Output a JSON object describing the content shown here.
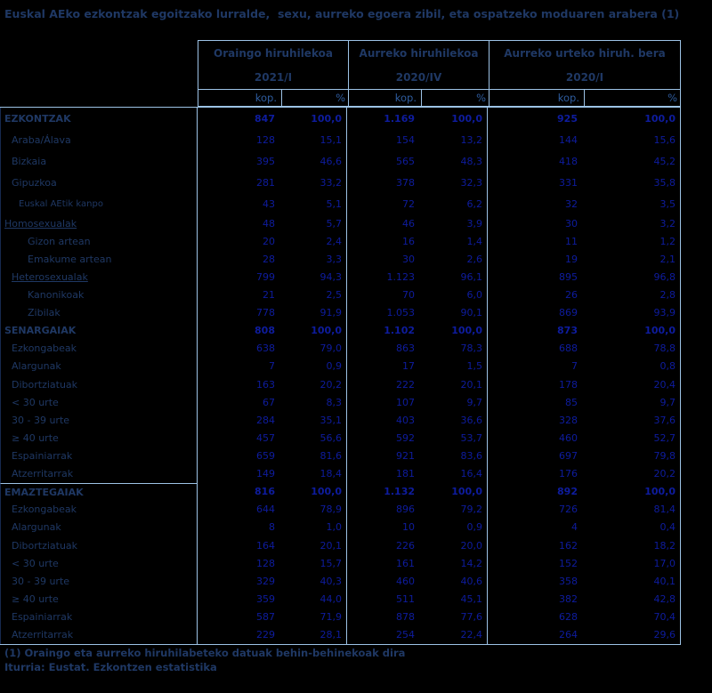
{
  "title": "Euskal AEko ezkontzak egoitzako lurralde,  sexu, aurreko egoera zibil, eta ospatzeko moduaren arabera (1)",
  "table": {
    "column_groups": [
      {
        "label": "Oraingo hiruhilekoa",
        "period": "2021/I"
      },
      {
        "label": "Aurreko hiruhilekoa",
        "period": "2020/IV"
      },
      {
        "label": "Aurreko urteko hiruh. bera",
        "period": "2020/I"
      }
    ],
    "subheaders": {
      "count": "kop.",
      "percent": "%"
    },
    "rows": [
      {
        "label": "EZKONTZAK",
        "bold": true,
        "indent": 0,
        "tall": true,
        "values": [
          "847",
          "100,0",
          "1.169",
          "100,0",
          "925",
          "100,0"
        ]
      },
      {
        "label": "Araba/Álava",
        "indent": 1,
        "tall": true,
        "values": [
          "128",
          "15,1",
          "154",
          "13,2",
          "144",
          "15,6"
        ]
      },
      {
        "label": "Bizkaia",
        "indent": 1,
        "tall": true,
        "values": [
          "395",
          "46,6",
          "565",
          "48,3",
          "418",
          "45,2"
        ]
      },
      {
        "label": "Gipuzkoa",
        "indent": 1,
        "tall": true,
        "values": [
          "281",
          "33,2",
          "378",
          "32,3",
          "331",
          "35,8"
        ]
      },
      {
        "label": "Euskal AEtik kanpo",
        "indent": 2,
        "small": true,
        "tall": true,
        "values": [
          "43",
          "5,1",
          "72",
          "6,2",
          "32",
          "3,5"
        ]
      },
      {
        "label": "Homosexualak",
        "indent": 0,
        "underline": true,
        "values": [
          "48",
          "5,7",
          "46",
          "3,9",
          "30",
          "3,2"
        ]
      },
      {
        "label": "Gizon artean",
        "indent": 3,
        "values": [
          "20",
          "2,4",
          "16",
          "1,4",
          "11",
          "1,2"
        ]
      },
      {
        "label": "Emakume artean",
        "indent": 3,
        "values": [
          "28",
          "3,3",
          "30",
          "2,6",
          "19",
          "2,1"
        ]
      },
      {
        "label": "Heterosexualak",
        "indent": 1,
        "underline": true,
        "values": [
          "799",
          "94,3",
          "1.123",
          "96,1",
          "895",
          "96,8"
        ]
      },
      {
        "label": "Kanonikoak",
        "indent": 3,
        "values": [
          "21",
          "2,5",
          "70",
          "6,0",
          "26",
          "2,8"
        ]
      },
      {
        "label": "Zibilak",
        "indent": 3,
        "values": [
          "778",
          "91,9",
          "1.053",
          "90,1",
          "869",
          "93,9"
        ]
      },
      {
        "label": "SENARGAIAK",
        "bold": true,
        "indent": 0,
        "values": [
          "808",
          "100,0",
          "1.102",
          "100,0",
          "873",
          "100,0"
        ]
      },
      {
        "label": "Ezkongabeak",
        "indent": 1,
        "values": [
          "638",
          "79,0",
          "863",
          "78,3",
          "688",
          "78,8"
        ]
      },
      {
        "label": "Alargunak",
        "indent": 1,
        "values": [
          "7",
          "0,9",
          "17",
          "1,5",
          "7",
          "0,8"
        ]
      },
      {
        "label": "Dibortziatuak",
        "indent": 1,
        "values": [
          "163",
          "20,2",
          "222",
          "20,1",
          "178",
          "20,4"
        ]
      },
      {
        "label": "< 30 urte",
        "indent": 1,
        "values": [
          "67",
          "8,3",
          "107",
          "9,7",
          "85",
          "9,7"
        ]
      },
      {
        "label": "30 - 39 urte",
        "indent": 1,
        "values": [
          "284",
          "35,1",
          "403",
          "36,6",
          "328",
          "37,6"
        ]
      },
      {
        "label": "≥ 40 urte",
        "indent": 1,
        "values": [
          "457",
          "56,6",
          "592",
          "53,7",
          "460",
          "52,7"
        ]
      },
      {
        "label": "Espainiarrak",
        "indent": 1,
        "values": [
          "659",
          "81,6",
          "921",
          "83,6",
          "697",
          "79,8"
        ]
      },
      {
        "label": "Atzerritarrak",
        "indent": 1,
        "values": [
          "149",
          "18,4",
          "181",
          "16,4",
          "176",
          "20,2"
        ]
      },
      {
        "label": "EMAZTEGAIAK",
        "bold": true,
        "indent": 0,
        "separator_above": true,
        "values": [
          "816",
          "100,0",
          "1.132",
          "100,0",
          "892",
          "100,0"
        ]
      },
      {
        "label": "Ezkongabeak",
        "indent": 1,
        "values": [
          "644",
          "78,9",
          "896",
          "79,2",
          "726",
          "81,4"
        ]
      },
      {
        "label": "Alargunak",
        "indent": 1,
        "values": [
          "8",
          "1,0",
          "10",
          "0,9",
          "4",
          "0,4"
        ]
      },
      {
        "label": "Dibortziatuak",
        "indent": 1,
        "values": [
          "164",
          "20,1",
          "226",
          "20,0",
          "162",
          "18,2"
        ]
      },
      {
        "label": "< 30 urte",
        "indent": 1,
        "values": [
          "128",
          "15,7",
          "161",
          "14,2",
          "152",
          "17,0"
        ]
      },
      {
        "label": "30 - 39 urte",
        "indent": 1,
        "values": [
          "329",
          "40,3",
          "460",
          "40,6",
          "358",
          "40,1"
        ]
      },
      {
        "label": "≥ 40 urte",
        "indent": 1,
        "values": [
          "359",
          "44,0",
          "511",
          "45,1",
          "382",
          "42,8"
        ]
      },
      {
        "label": "Espainiarrak",
        "indent": 1,
        "values": [
          "587",
          "71,9",
          "878",
          "77,6",
          "628",
          "70,4"
        ]
      },
      {
        "label": "Atzerritarrak",
        "indent": 1,
        "values": [
          "229",
          "28,1",
          "254",
          "22,4",
          "264",
          "29,6"
        ]
      }
    ]
  },
  "footnotes": {
    "note": "(1) Oraingo eta aurreko hiruhilabeteko datuak behin-behinekoak dira",
    "source": "Iturria: Eustat. Ezkontzen estatistika"
  },
  "colors": {
    "background": "#000000",
    "border": "#9DC3E6",
    "heading_text": "#1F3864",
    "subheader_text": "#2E5C9E",
    "value_text": "#0E1C9E"
  }
}
